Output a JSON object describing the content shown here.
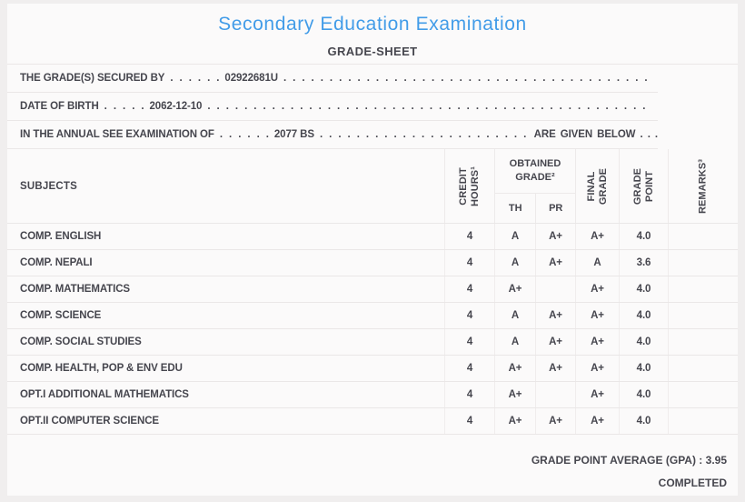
{
  "header": {
    "title": "Secondary Education Examination",
    "subtitle": "GRADE-SHEET"
  },
  "info": {
    "filler_dots": ". . . . . . . . . . . . . . . . . . . . . . . . . . . . . . . . . . . . . . . . . . . . . . . . . . . . . . . . . . . . . . . . . . . . . . . . . . . . . . . . . . . . . . . . . . . . . . . . . . . . . . . . . . . . . . . . . . . . . . . . . . . .",
    "lines": [
      {
        "label": "THE GRADE(S) SECURED BY",
        "dots": ". . . . . .",
        "value": "02922681U",
        "trailing": ""
      },
      {
        "label": "DATE OF BIRTH",
        "dots": ". . . . .",
        "value": "2062-12-10",
        "trailing": ""
      },
      {
        "label": "IN THE ANNUAL SEE EXAMINATION OF",
        "dots": ". . . . . .",
        "value": "2077 BS",
        "trailing": "ARE GIVEN BELOW . . ."
      }
    ]
  },
  "table": {
    "headers": {
      "subjects": "SUBJECTS",
      "credit_hours": "CREDIT HOURS¹",
      "obtained_grade": "OBTAINED GRADE²",
      "th": "TH",
      "pr": "PR",
      "final_grade": "FINAL GRADE",
      "grade_point": "GRADE POINT",
      "remarks": "REMARKS³"
    },
    "rows": [
      {
        "subject": "COMP. ENGLISH",
        "credit_hours": "4",
        "th": "A",
        "pr": "A+",
        "final_grade": "A+",
        "grade_point": "4.0",
        "remarks": ""
      },
      {
        "subject": "COMP. NEPALI",
        "credit_hours": "4",
        "th": "A",
        "pr": "A+",
        "final_grade": "A",
        "grade_point": "3.6",
        "remarks": ""
      },
      {
        "subject": "COMP. MATHEMATICS",
        "credit_hours": "4",
        "th": "A+",
        "pr": "",
        "final_grade": "A+",
        "grade_point": "4.0",
        "remarks": ""
      },
      {
        "subject": "COMP. SCIENCE",
        "credit_hours": "4",
        "th": "A",
        "pr": "A+",
        "final_grade": "A+",
        "grade_point": "4.0",
        "remarks": ""
      },
      {
        "subject": "COMP. SOCIAL STUDIES",
        "credit_hours": "4",
        "th": "A",
        "pr": "A+",
        "final_grade": "A+",
        "grade_point": "4.0",
        "remarks": ""
      },
      {
        "subject": "COMP. HEALTH, POP & ENV EDU",
        "credit_hours": "4",
        "th": "A+",
        "pr": "A+",
        "final_grade": "A+",
        "grade_point": "4.0",
        "remarks": ""
      },
      {
        "subject": "OPT.I ADDITIONAL MATHEMATICS",
        "credit_hours": "4",
        "th": "A+",
        "pr": "",
        "final_grade": "A+",
        "grade_point": "4.0",
        "remarks": ""
      },
      {
        "subject": "OPT.II COMPUTER SCIENCE",
        "credit_hours": "4",
        "th": "A+",
        "pr": "A+",
        "final_grade": "A+",
        "grade_point": "4.0",
        "remarks": ""
      }
    ]
  },
  "footer": {
    "gpa_label": "GRADE POINT AVERAGE (GPA) :",
    "gpa_value": "3.95",
    "status": "COMPLETED"
  },
  "colors": {
    "title_blue": "#429ce8",
    "text": "#46464e",
    "page_background": "#f0eeee",
    "card_background": "#fbfafa",
    "hairline": "#eae7e7"
  }
}
